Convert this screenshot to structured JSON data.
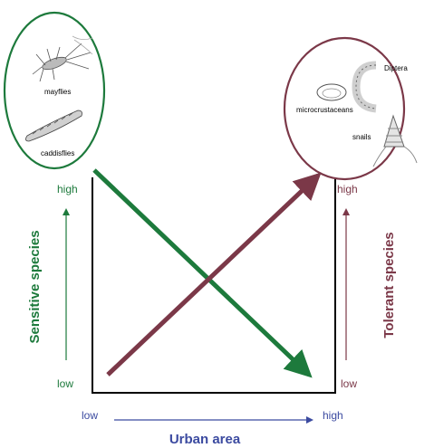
{
  "colors": {
    "sensitive": "#1d7a3c",
    "tolerant": "#7b3848",
    "urban": "#3b4aa0",
    "frame": "#000000"
  },
  "sensitive": {
    "axis_title": "Sensitive species",
    "high": "high",
    "low": "low",
    "species": [
      "mayflies",
      "caddisflies"
    ]
  },
  "tolerant": {
    "axis_title": "Tolerant species",
    "high": "high",
    "low": "low",
    "species": [
      "Diptera",
      "microcrustaceans",
      "snails"
    ]
  },
  "urban": {
    "axis_title": "Urban area",
    "low": "low",
    "high": "high"
  }
}
